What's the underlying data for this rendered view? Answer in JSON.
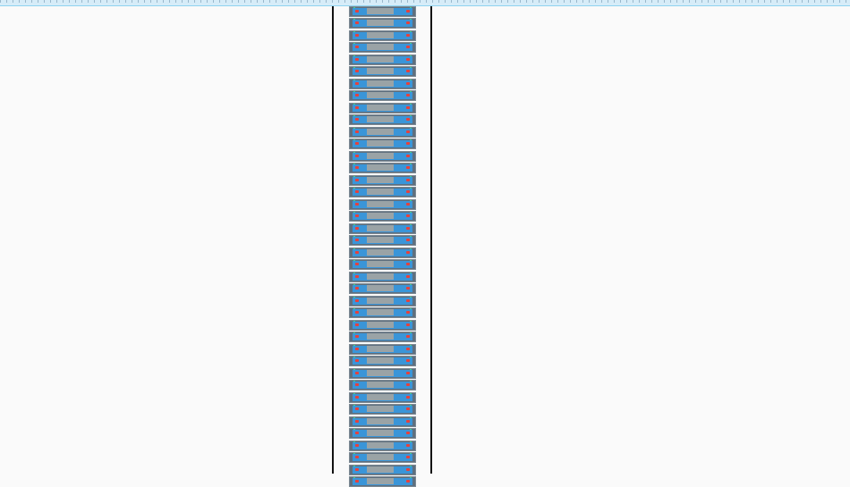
{
  "ruler": {
    "visible": true
  },
  "rack": {
    "units": 40,
    "units_per_group": 2,
    "colors": {
      "chassis": "#5f6f7e",
      "face": "#3a95d8",
      "label": "#9aa3a6",
      "led": "#e8403a",
      "rail": "#111111"
    }
  }
}
